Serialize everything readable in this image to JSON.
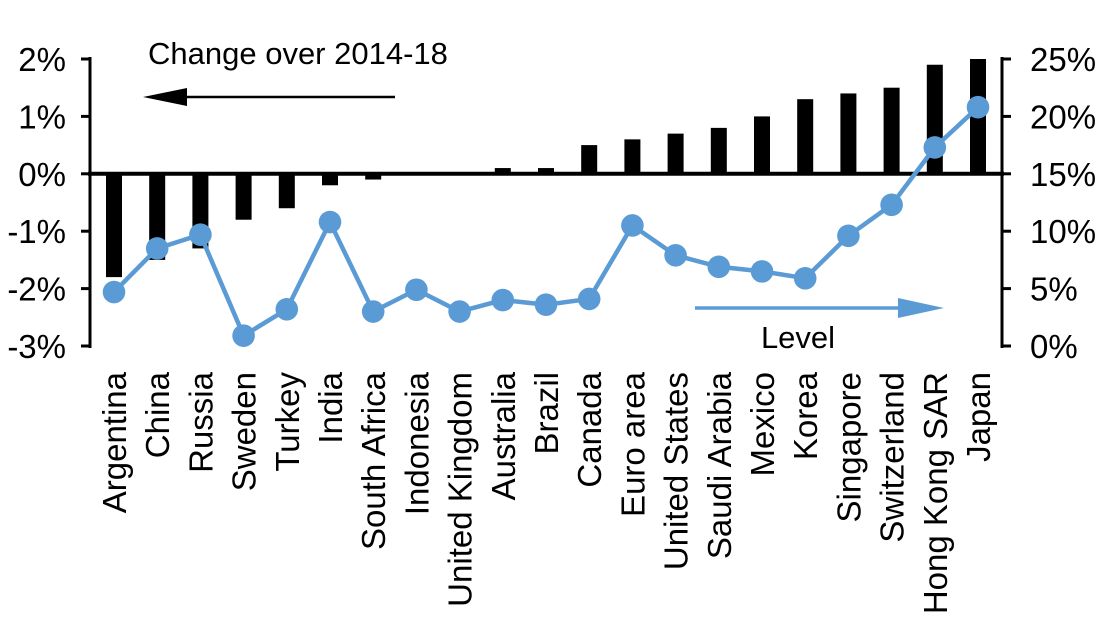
{
  "chart_data": {
    "type": "combo",
    "title": "Change over 2014-18",
    "line_label": "Level",
    "categories": [
      "Argentina",
      "China",
      "Russia",
      "Sweden",
      "Turkey",
      "India",
      "South Africa",
      "Indonesia",
      "United Kingdom",
      "Australia",
      "Brazil",
      "Canada",
      "Euro area",
      "United States",
      "Saudi Arabia",
      "Mexico",
      "Korea",
      "Singapore",
      "Switzerland",
      "Hong Kong SAR",
      "Japan"
    ],
    "series": [
      {
        "name": "Change over 2014-18",
        "type": "bar",
        "axis": "left",
        "unit": "percentage points",
        "color": "#000000",
        "values": [
          -1.8,
          -1.5,
          -1.3,
          -0.8,
          -0.6,
          -0.2,
          -0.1,
          0,
          0,
          0.1,
          0.1,
          0.5,
          0.6,
          0.7,
          0.8,
          1,
          1.3,
          1.4,
          1.5,
          1.9,
          2
        ]
      },
      {
        "name": "Level",
        "type": "line",
        "axis": "right",
        "unit": "%",
        "color": "#5b9bd5",
        "values": [
          4.7,
          8.5,
          9.7,
          0.9,
          3.2,
          10.8,
          3,
          4.9,
          3,
          4,
          3.6,
          4.1,
          10.5,
          7.9,
          6.9,
          6.5,
          5.9,
          9.6,
          12.3,
          17.3,
          20.8
        ]
      }
    ],
    "left_axis": {
      "min": -3,
      "max": 2,
      "tick_labels": [
        "2%",
        "1%",
        "0%",
        "-1%",
        "-2%",
        "-3%"
      ],
      "tick_values": [
        2,
        1,
        0,
        -1,
        -2,
        -3
      ]
    },
    "right_axis": {
      "min": 0,
      "max": 25,
      "tick_labels": [
        "25%",
        "20%",
        "15%",
        "10%",
        "5%",
        "0%"
      ],
      "tick_values": [
        25,
        20,
        15,
        10,
        5,
        0
      ]
    },
    "legend_position": "none",
    "grid": false
  }
}
